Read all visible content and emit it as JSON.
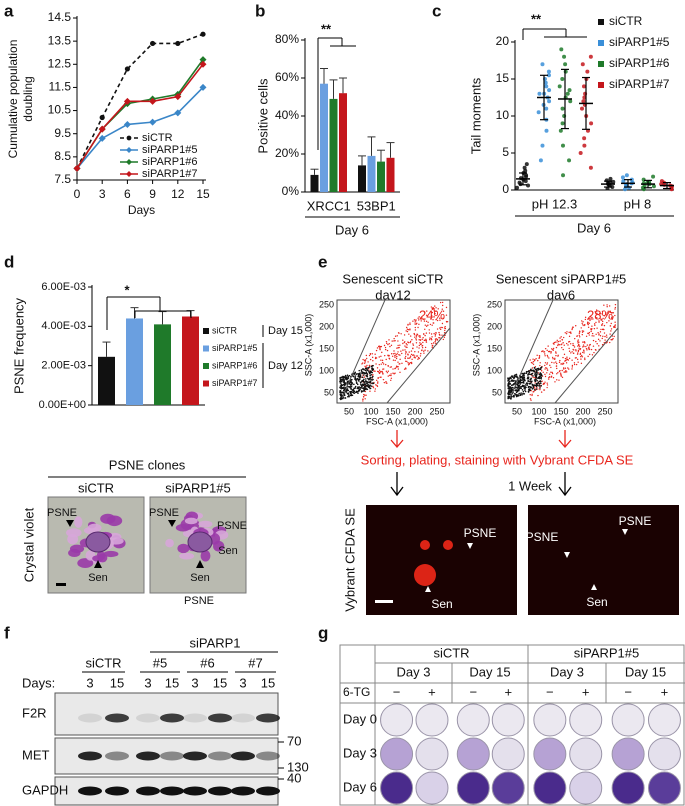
{
  "chart_data": [
    {
      "panel": "a",
      "type": "line",
      "y_label": [
        "Cumulative population",
        "doubling"
      ],
      "x_label": "Days",
      "x": [
        0,
        3,
        6,
        9,
        12,
        15
      ],
      "xlim": [
        0,
        15
      ],
      "xticks": [
        0,
        3,
        6,
        9,
        12,
        15
      ],
      "ylim": [
        7.5,
        14.5
      ],
      "yticks": [
        7.5,
        8.5,
        9.5,
        10.5,
        11.5,
        12.5,
        13.5,
        14.5
      ],
      "legend": "lower right",
      "series": [
        {
          "name": "siCTR",
          "color": "#111111",
          "style": "dashed",
          "marker": "circle",
          "values": [
            8.0,
            10.2,
            12.3,
            13.4,
            13.4,
            13.8
          ]
        },
        {
          "name": "siPARP1#5",
          "color": "#3a86c8",
          "style": "solid",
          "marker": "diamond",
          "values": [
            8.0,
            9.3,
            9.9,
            10.0,
            10.4,
            11.5
          ]
        },
        {
          "name": "siPARP1#6",
          "color": "#1f7a2a",
          "style": "solid",
          "marker": "diamond",
          "values": [
            8.0,
            9.7,
            10.8,
            11.0,
            11.2,
            12.7
          ]
        },
        {
          "name": "siPARP1#7",
          "color": "#c4161c",
          "style": "solid",
          "marker": "diamond",
          "values": [
            8.0,
            9.7,
            10.9,
            10.9,
            11.1,
            12.5
          ]
        }
      ]
    },
    {
      "panel": "b",
      "type": "bar",
      "y_label": "Positive cells",
      "categories": [
        "XRCC1",
        "53BP1"
      ],
      "group_label": "Day 6",
      "annotation": "**",
      "ylim": [
        0,
        80
      ],
      "yticks": [
        {
          "value": 0,
          "label": "0%"
        },
        {
          "value": 20,
          "label": "20%"
        },
        {
          "value": 40,
          "label": "40%"
        },
        {
          "value": 60,
          "label": "60%"
        },
        {
          "value": 80,
          "label": "80%"
        }
      ],
      "series": [
        {
          "color": "#111111",
          "values": [
            9,
            14
          ],
          "errors": [
            3,
            5
          ]
        },
        {
          "color": "#6a9fe0",
          "values": [
            57,
            19
          ],
          "errors": [
            8,
            10
          ]
        },
        {
          "color": "#1f7a2a",
          "values": [
            49,
            16
          ],
          "errors": [
            10,
            6
          ]
        },
        {
          "color": "#c4161c",
          "values": [
            52,
            18
          ],
          "errors": [
            8,
            8
          ]
        }
      ]
    },
    {
      "panel": "c",
      "type": "dot",
      "y_label": "Tail moments",
      "categories": [
        "pH 12.3",
        "pH 8"
      ],
      "group_label": "Day 6",
      "annotation": "**",
      "ylim": [
        0,
        20
      ],
      "yticks": [
        0,
        5,
        10,
        15,
        20
      ],
      "legend": "upper right",
      "series": [
        {
          "name": "siCTR",
          "color": "#111111",
          "values": [
            [
              0.3,
              0.6,
              0.8,
              1.0,
              1.2,
              1.4,
              1.6,
              1.8,
              2.0,
              2.3,
              2.6,
              3.0,
              3.5
            ],
            [
              0.2,
              0.4,
              0.6,
              0.7,
              0.8,
              0.9,
              1.0,
              1.1,
              1.3,
              1.5
            ]
          ],
          "means": [
            1.5,
            0.8
          ],
          "errors": [
            0.8,
            0.4
          ]
        },
        {
          "name": "siPARP1#5",
          "color": "#3a8fd8",
          "values": [
            [
              4,
              6,
              8,
              9.5,
              10.5,
              11,
              11.5,
              12,
              12.5,
              13,
              13,
              13.5,
              14,
              14.5,
              15,
              15.5,
              16,
              17
            ],
            [
              0.1,
              0.3,
              0.5,
              0.7,
              0.8,
              0.9,
              1.0,
              1.2,
              1.4,
              1.7,
              2.0
            ]
          ],
          "means": [
            12.5,
            0.9
          ],
          "errors": [
            3,
            0.5
          ]
        },
        {
          "name": "siPARP1#6",
          "color": "#1f7a2a",
          "values": [
            [
              2,
              4,
              6,
              8,
              9,
              10,
              11,
              12,
              12.5,
              13,
              13.5,
              14,
              15,
              16,
              17,
              18,
              19
            ],
            [
              0.1,
              0.3,
              0.5,
              0.6,
              0.8,
              0.9,
              1.0,
              1.1,
              1.4,
              1.8
            ]
          ],
          "means": [
            12.3,
            0.8
          ],
          "errors": [
            4,
            0.5
          ]
        },
        {
          "name": "siPARP1#7",
          "color": "#c4161c",
          "values": [
            [
              3,
              5,
              6,
              7,
              8,
              9,
              10,
              11,
              11.5,
              12,
              12.5,
              13,
              14,
              15,
              16,
              17,
              18
            ],
            [
              0.1,
              0.2,
              0.4,
              0.5,
              0.6,
              0.7,
              0.8,
              1.0,
              1.2
            ]
          ],
          "means": [
            11.7,
            0.6
          ],
          "errors": [
            3.5,
            0.4
          ]
        }
      ]
    },
    {
      "panel": "d",
      "type": "bar",
      "y_label": "PSNE frequency",
      "categories": [
        null
      ],
      "annotation": "*",
      "legend": "right",
      "legend_notes": [
        "Day 15",
        "Day 12"
      ],
      "ylim": [
        0,
        0.006
      ],
      "yticks": [
        {
          "value": 0,
          "label": "0.00E+00"
        },
        {
          "value": 0.002,
          "label": "2.00E-03"
        },
        {
          "value": 0.004,
          "label": "4.00E-03"
        },
        {
          "value": 0.006,
          "label": "6.00E-03"
        }
      ],
      "series": [
        {
          "name": "siCTR",
          "color": "#111111",
          "values": [
            0.00245
          ],
          "errors": [
            0.00075
          ]
        },
        {
          "name": "siPARP1#5",
          "color": "#6a9fe0",
          "values": [
            0.0044
          ],
          "errors": [
            0.00055
          ]
        },
        {
          "name": "siPARP1#6",
          "color": "#1f7a2a",
          "values": [
            0.0041
          ],
          "errors": [
            0.00065
          ]
        },
        {
          "name": "siPARP1#7",
          "color": "#c4161c",
          "values": [
            0.0045
          ],
          "errors": [
            0.0003
          ]
        }
      ]
    }
  ],
  "crystal_violet": {
    "title": "PSNE clones",
    "columns": [
      "siCTR",
      "siPARP1#5"
    ],
    "side_label": "Crystal violet",
    "cell_labels": [
      "PSNE",
      "Sen"
    ]
  },
  "panel_e": {
    "panel": "e",
    "plots": [
      {
        "title": "Senescent siCTR",
        "subtitle": "day12",
        "percent": "24%"
      },
      {
        "title": "Senescent siPARP1#5",
        "subtitle": "day6",
        "percent": "28%"
      }
    ],
    "y_label": "SSC-A  (x1,000)",
    "x_label": "FSC-A  (x1,000)",
    "tick_labels": [
      "50",
      "100",
      "150",
      "200",
      "250"
    ],
    "step": "Sorting, plating, staining with Vybrant CFDA SE",
    "duration": "1 Week",
    "image_label": "Vybrant CFDA SE",
    "cell_labels": [
      "PSNE",
      "Sen"
    ]
  },
  "panel_f": {
    "panel": "f",
    "group": "siPARP1",
    "lanes": [
      "siCTR",
      "#5",
      "#6",
      "#7"
    ],
    "days_label": "Days:",
    "days": [
      "3",
      "15"
    ],
    "rows": [
      "F2R",
      "MET",
      "GAPDH"
    ],
    "markers": [
      "70",
      "130",
      "40"
    ]
  },
  "panel_g": {
    "panel": "g",
    "groups": [
      "siCTR",
      "siPARP1#5"
    ],
    "days": [
      "Day 3",
      "Day 15"
    ],
    "treatment": "6-TG",
    "signs": [
      "−",
      "+"
    ],
    "rows": [
      "Day 0",
      "Day 3",
      "Day 6"
    ]
  }
}
